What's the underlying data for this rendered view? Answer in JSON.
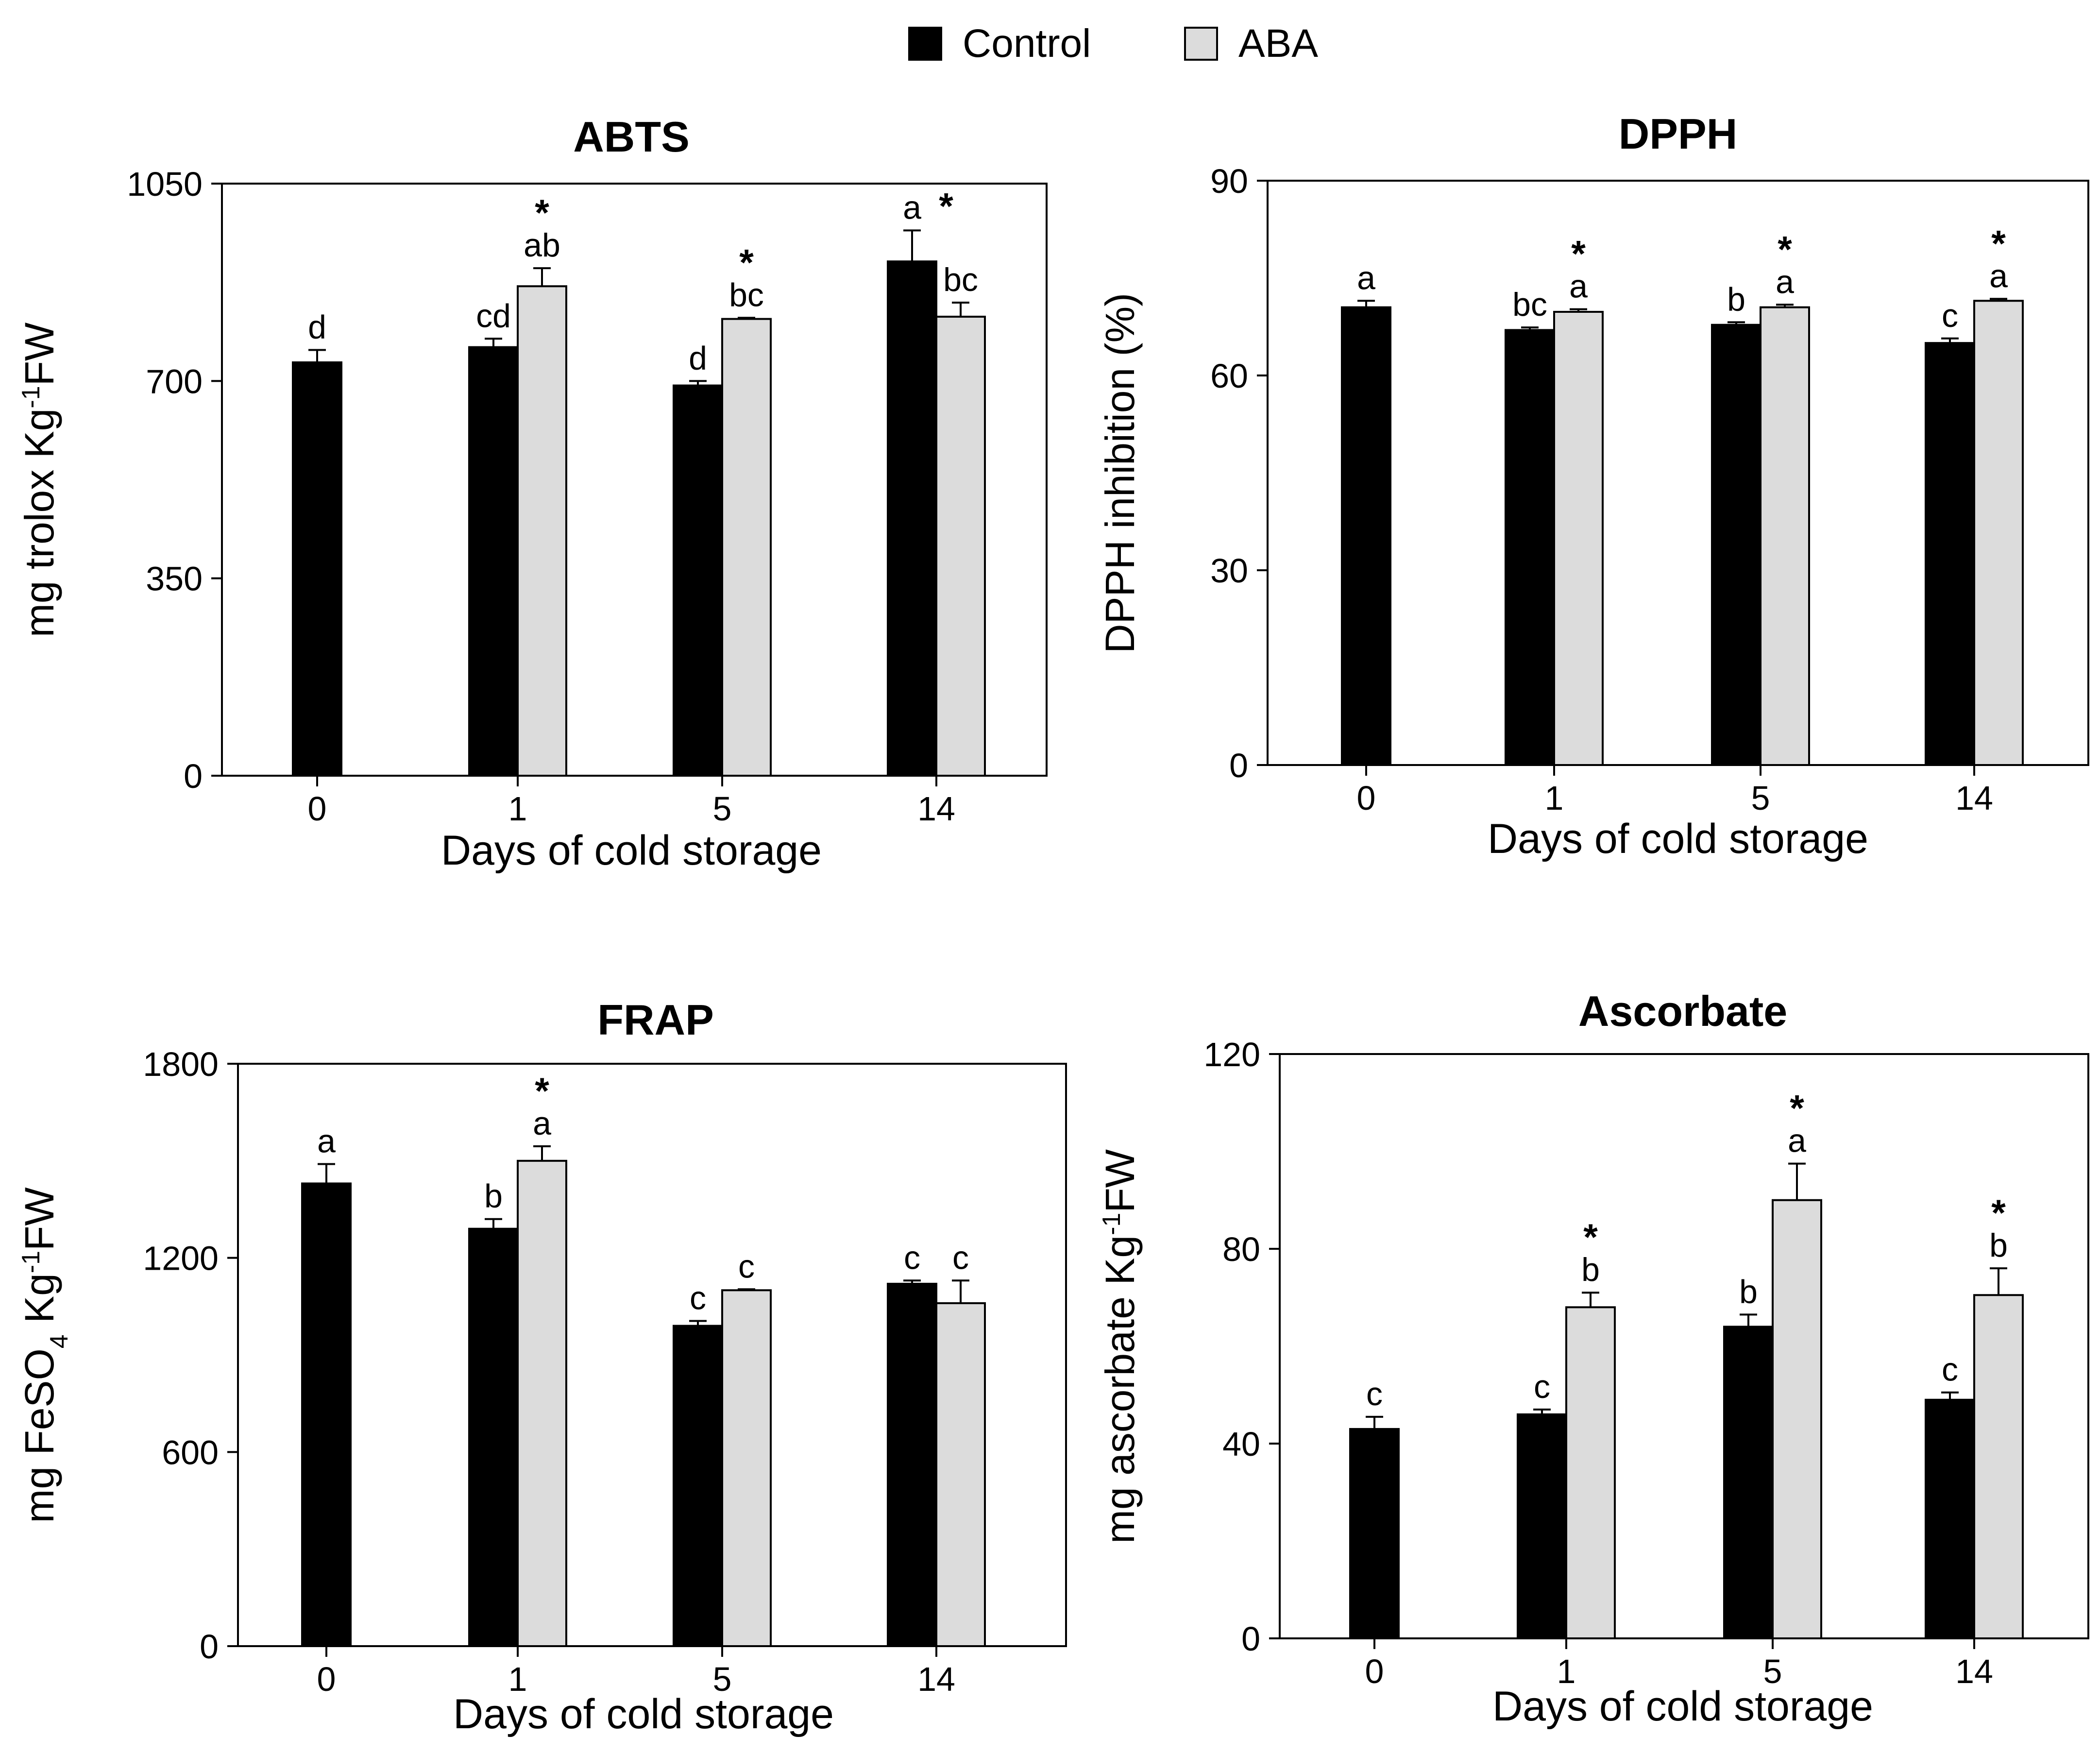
{
  "legend": {
    "items": [
      {
        "label": "Control",
        "color": "#000000"
      },
      {
        "label": "ABA",
        "color": "#dcdcdc"
      }
    ]
  },
  "chart_data": [
    {
      "type": "bar",
      "title": "ABTS",
      "xlabel": "Days of cold storage",
      "ylabel_parts": [
        "mg trolox Kg",
        "-1",
        "FW"
      ],
      "categories": [
        "0",
        "1",
        "5",
        "14"
      ],
      "yticks": [
        "0",
        "350",
        "700",
        "1050"
      ],
      "ylim": [
        0,
        1050
      ],
      "series": [
        {
          "name": "Control",
          "color": "#000000",
          "values": [
            733,
            760,
            692,
            912
          ],
          "errors": [
            22,
            15,
            8,
            55
          ],
          "labels": [
            "d",
            "cd",
            "d",
            "a"
          ],
          "stars": [
            false,
            false,
            false,
            true
          ]
        },
        {
          "name": "ABA",
          "color": "#dcdcdc",
          "values": [
            null,
            868,
            810,
            814
          ],
          "errors": [
            null,
            32,
            2,
            25
          ],
          "labels": [
            "",
            "ab",
            "bc",
            "bc"
          ],
          "stars": [
            false,
            true,
            true,
            false
          ]
        }
      ]
    },
    {
      "type": "bar",
      "title": "DPPH",
      "xlabel": "Days of cold storage",
      "ylabel_parts": [
        "DPPH inhibition (%)"
      ],
      "categories": [
        "0",
        "1",
        "5",
        "14"
      ],
      "yticks": [
        "0",
        "30",
        "60",
        "90"
      ],
      "ylim": [
        0,
        90
      ],
      "series": [
        {
          "name": "Control",
          "color": "#000000",
          "values": [
            70.5,
            67.0,
            67.8,
            65.0
          ],
          "errors": [
            1.0,
            0.4,
            0.4,
            0.7
          ],
          "labels": [
            "a",
            "bc",
            "b",
            "c"
          ],
          "stars": [
            false,
            false,
            false,
            false
          ]
        },
        {
          "name": "ABA",
          "color": "#dcdcdc",
          "values": [
            null,
            69.8,
            70.5,
            71.5
          ],
          "errors": [
            null,
            0.4,
            0.4,
            0.3
          ],
          "labels": [
            "",
            "a",
            "a",
            "a"
          ],
          "stars": [
            false,
            true,
            true,
            true
          ]
        }
      ]
    },
    {
      "type": "bar",
      "title": "FRAP",
      "xlabel": "Days of cold storage",
      "ylabel_parts": [
        "mg FeSO",
        "4",
        " Kg",
        "-1",
        "FW"
      ],
      "categories": [
        "0",
        "1",
        "5",
        "14"
      ],
      "yticks": [
        "0",
        "600",
        "1200",
        "1800"
      ],
      "ylim": [
        0,
        1800
      ],
      "series": [
        {
          "name": "Control",
          "color": "#000000",
          "values": [
            1430,
            1290,
            990,
            1120
          ],
          "errors": [
            60,
            30,
            15,
            10
          ],
          "labels": [
            "a",
            "b",
            "c",
            "c"
          ],
          "stars": [
            false,
            false,
            false,
            false
          ]
        },
        {
          "name": "ABA",
          "color": "#dcdcdc",
          "values": [
            null,
            1500,
            1100,
            1060
          ],
          "errors": [
            null,
            45,
            3,
            70
          ],
          "labels": [
            "",
            "a",
            "c",
            "c"
          ],
          "stars": [
            false,
            true,
            false,
            false
          ]
        }
      ]
    },
    {
      "type": "bar",
      "title": "Ascorbate",
      "xlabel": "Days of cold storage",
      "ylabel_parts": [
        "mg ascorbate Kg",
        "-1",
        "FW"
      ],
      "categories": [
        "0",
        "1",
        "5",
        "14"
      ],
      "yticks": [
        "0",
        "40",
        "80",
        "120"
      ],
      "ylim": [
        0,
        120
      ],
      "series": [
        {
          "name": "Control",
          "color": "#000000",
          "values": [
            43,
            46,
            64,
            49
          ],
          "errors": [
            2.5,
            1.0,
            2.5,
            1.5
          ],
          "labels": [
            "c",
            "c",
            "b",
            "c"
          ],
          "stars": [
            false,
            false,
            false,
            false
          ]
        },
        {
          "name": "ABA",
          "color": "#dcdcdc",
          "values": [
            null,
            68,
            90,
            70.5
          ],
          "errors": [
            null,
            3.0,
            7.5,
            5.5
          ],
          "labels": [
            "",
            "b",
            "a",
            "b"
          ],
          "stars": [
            false,
            true,
            true,
            true
          ]
        }
      ]
    }
  ]
}
